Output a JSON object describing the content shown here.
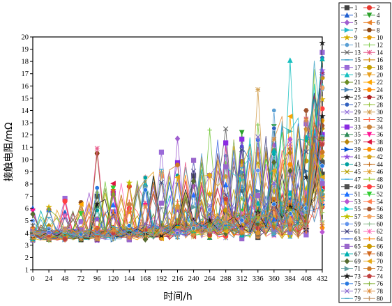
{
  "chart_data": {
    "type": "line",
    "xlabel": "时间/h",
    "ylabel": "接触电阻/mΩ",
    "xlim": [
      0,
      432
    ],
    "ylim": [
      1,
      20
    ],
    "xticks": [
      0,
      24,
      48,
      72,
      96,
      120,
      144,
      168,
      192,
      216,
      240,
      264,
      288,
      312,
      336,
      360,
      384,
      408,
      432
    ],
    "yticks": [
      1,
      2,
      3,
      4,
      5,
      6,
      7,
      8,
      9,
      10,
      11,
      12,
      13,
      14,
      15,
      16,
      17,
      18,
      19,
      20
    ],
    "grid": false,
    "legend_position": "right-outside",
    "x": [
      0,
      12,
      24,
      36,
      48,
      60,
      72,
      84,
      96,
      108,
      120,
      132,
      144,
      156,
      168,
      180,
      192,
      204,
      216,
      228,
      240,
      252,
      264,
      276,
      288,
      300,
      312,
      324,
      336,
      348,
      360,
      372,
      384,
      396,
      408,
      420,
      432
    ],
    "series_names": [
      "1",
      "2",
      "3",
      "4",
      "5",
      "6",
      "7",
      "8",
      "9",
      "10",
      "11",
      "12",
      "13",
      "14",
      "15",
      "16",
      "17",
      "18",
      "19",
      "20",
      "21",
      "22",
      "23",
      "24",
      "25",
      "26",
      "27",
      "28",
      "29",
      "30",
      "31",
      "32",
      "33",
      "34",
      "35",
      "36",
      "37",
      "38",
      "39",
      "40",
      "41",
      "42",
      "43",
      "44",
      "45",
      "46",
      "47",
      "48",
      "49",
      "50",
      "51",
      "52",
      "53",
      "54",
      "55",
      "56",
      "57",
      "58",
      "59",
      "60",
      "61",
      "62",
      "63",
      "64",
      "65",
      "66",
      "67",
      "68",
      "69",
      "70",
      "71",
      "72",
      "73",
      "74",
      "75",
      "76",
      "77",
      "78",
      "79",
      "80"
    ],
    "colors": [
      "#404040",
      "#e8382f",
      "#1f5fd0",
      "#2aa02a",
      "#a05fd0",
      "#e8822a",
      "#20b8c8",
      "#8b4513",
      "#d4b000",
      "#e89a00",
      "#5a9fd4",
      "#7ac943",
      "#606060",
      "#e85a8a",
      "#2090c0",
      "#d08000",
      "#9a6ad8",
      "#c8a000",
      "#18c0c0",
      "#e8a020",
      "#6b8e23",
      "#ffa500",
      "#4682b4",
      "#ff8c00",
      "#222222",
      "#b22222",
      "#3060c0",
      "#90c030",
      "#9370db",
      "#d2a050",
      "#708090",
      "#ff6347",
      "#8a2be2",
      "#cd853f",
      "#2e8b57",
      "#ff1493",
      "#b8860b",
      "#dc143c",
      "#0050d0",
      "#ff9000",
      "#9050e0",
      "#daa520",
      "#00a0a0",
      "#c06000",
      "#b8a000",
      "#e0a030",
      "#40b0e0",
      "#9acd32",
      "#505050",
      "#ff4040",
      "#1e70ff",
      "#32cd32",
      "#ba55d3",
      "#ff7f50",
      "#00ced1",
      "#a0522d",
      "#c0c000",
      "#f4a460",
      "#6495ed",
      "#8fbc8f",
      "#404080",
      "#ff69b4",
      "#4169e1",
      "#ff8000",
      "#9966cc",
      "#cc9900",
      "#00b0b0",
      "#d2691e",
      "#556b2f",
      "#e6a817",
      "#5f9ea0",
      "#cc7722",
      "#1a1a1a",
      "#c04040",
      "#2878e0",
      "#7fb030",
      "#8a6ad0",
      "#e09040",
      "#48a8c8",
      "#c09060"
    ],
    "markers": [
      "square",
      "circle",
      "triangle",
      "triangle-down",
      "diamond",
      "triangle-left",
      "triangle-right",
      "hexagon",
      "star",
      "pentagon",
      "sphere",
      "plus",
      "x",
      "star-x",
      "dash",
      "bar",
      "square",
      "circle",
      "triangle",
      "triangle-down",
      "diamond",
      "triangle-left",
      "triangle-right",
      "hexagon",
      "star",
      "pentagon",
      "sphere",
      "plus",
      "x",
      "star-x",
      "dash",
      "bar",
      "square",
      "circle",
      "triangle",
      "triangle-down",
      "diamond",
      "triangle-left",
      "triangle-right",
      "hexagon",
      "star",
      "pentagon",
      "sphere",
      "plus",
      "x",
      "star-x",
      "dash",
      "bar",
      "square",
      "circle",
      "triangle",
      "triangle-down",
      "diamond",
      "triangle-left",
      "triangle-right",
      "hexagon",
      "star",
      "pentagon",
      "sphere",
      "plus",
      "x",
      "star-x",
      "dash",
      "bar",
      "square",
      "circle",
      "triangle",
      "triangle-down",
      "diamond",
      "triangle-left",
      "triangle-right",
      "hexagon",
      "star",
      "pentagon",
      "sphere",
      "plus",
      "x",
      "star-x",
      "dash",
      "bar"
    ],
    "highlights": [
      {
        "series": "3",
        "x": 48,
        "y": 5.7
      },
      {
        "series": "1",
        "x": 60,
        "y": 5.2
      },
      {
        "series": "2",
        "x": 24,
        "y": 5.9
      },
      {
        "series": "14",
        "x": 96,
        "y": 10.9
      },
      {
        "series": "8",
        "x": 96,
        "y": 10.5
      },
      {
        "series": "12",
        "x": 108,
        "y": 8.2
      },
      {
        "series": "5",
        "x": 84,
        "y": 7.3
      },
      {
        "series": "2",
        "x": 144,
        "y": 7.8
      },
      {
        "series": "11",
        "x": 168,
        "y": 8.5
      },
      {
        "series": "17",
        "x": 192,
        "y": 10.6
      },
      {
        "series": "5",
        "x": 216,
        "y": 11.7
      },
      {
        "series": "11",
        "x": 252,
        "y": 10.5
      },
      {
        "series": "12",
        "x": 264,
        "y": 12.4
      },
      {
        "series": "13",
        "x": 288,
        "y": 12.5
      },
      {
        "series": "4",
        "x": 312,
        "y": 12.2
      },
      {
        "series": "30",
        "x": 336,
        "y": 15.7
      },
      {
        "series": "11",
        "x": 360,
        "y": 14.0
      },
      {
        "series": "19",
        "x": 384,
        "y": 18.1
      },
      {
        "series": "14",
        "x": 408,
        "y": 13.3
      },
      {
        "series": "3",
        "x": 432,
        "y": 17.1
      },
      {
        "series": "19",
        "x": 432,
        "y": 16.0
      }
    ]
  }
}
